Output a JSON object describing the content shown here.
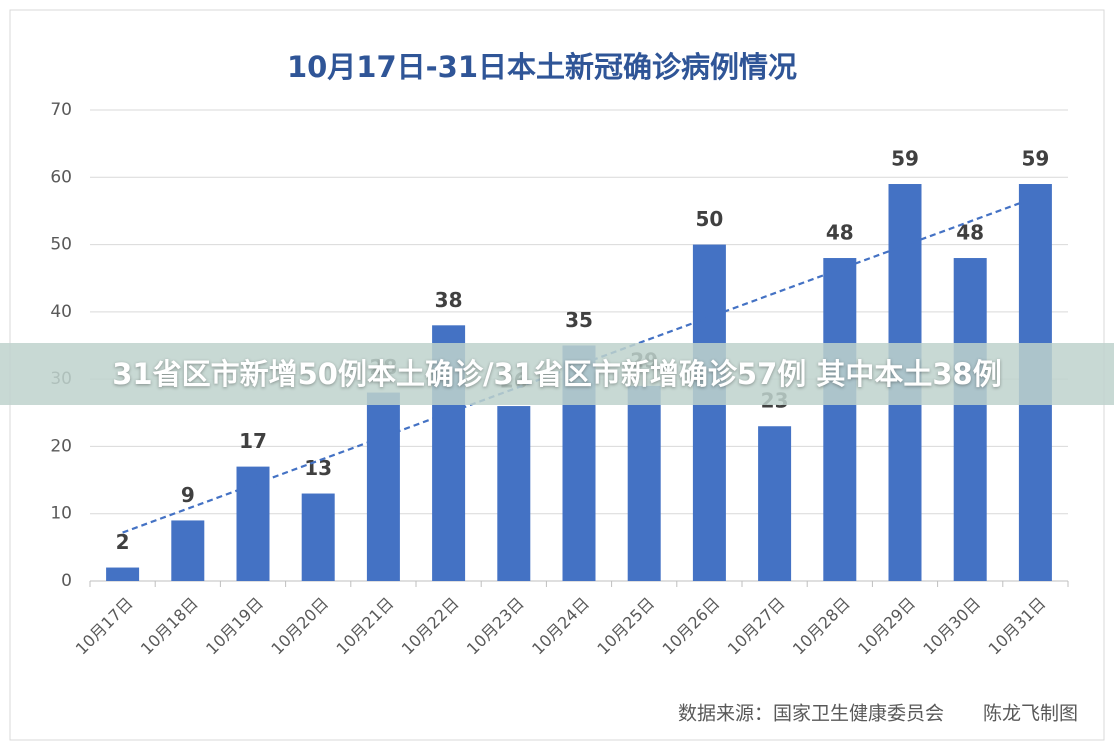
{
  "chart_data": {
    "type": "bar",
    "title": "10月17日-31日本土新冠确诊病例情况",
    "categories": [
      "10月17日",
      "10月18日",
      "10月19日",
      "10月20日",
      "10月21日",
      "10月22日",
      "10月23日",
      "10月24日",
      "10月25日",
      "10月26日",
      "10月27日",
      "10月28日",
      "10月29日",
      "10月30日",
      "10月31日"
    ],
    "values": [
      2,
      9,
      17,
      13,
      28,
      38,
      26,
      35,
      29,
      50,
      23,
      48,
      59,
      48,
      59
    ],
    "color": "#4472c4",
    "ylim": [
      0,
      70
    ],
    "yticks": [
      0,
      10,
      20,
      30,
      40,
      50,
      60,
      70
    ],
    "grid": true,
    "trendline": {
      "color": "#4472c4",
      "values": [
        7.2,
        57
      ]
    },
    "source": "数据来源：国家卫生健康委员会",
    "credit": "陈龙飞制图"
  },
  "overlay_banner": "31省区市新增50例本土确诊/31省区市新增确诊57例 其中本土38例"
}
